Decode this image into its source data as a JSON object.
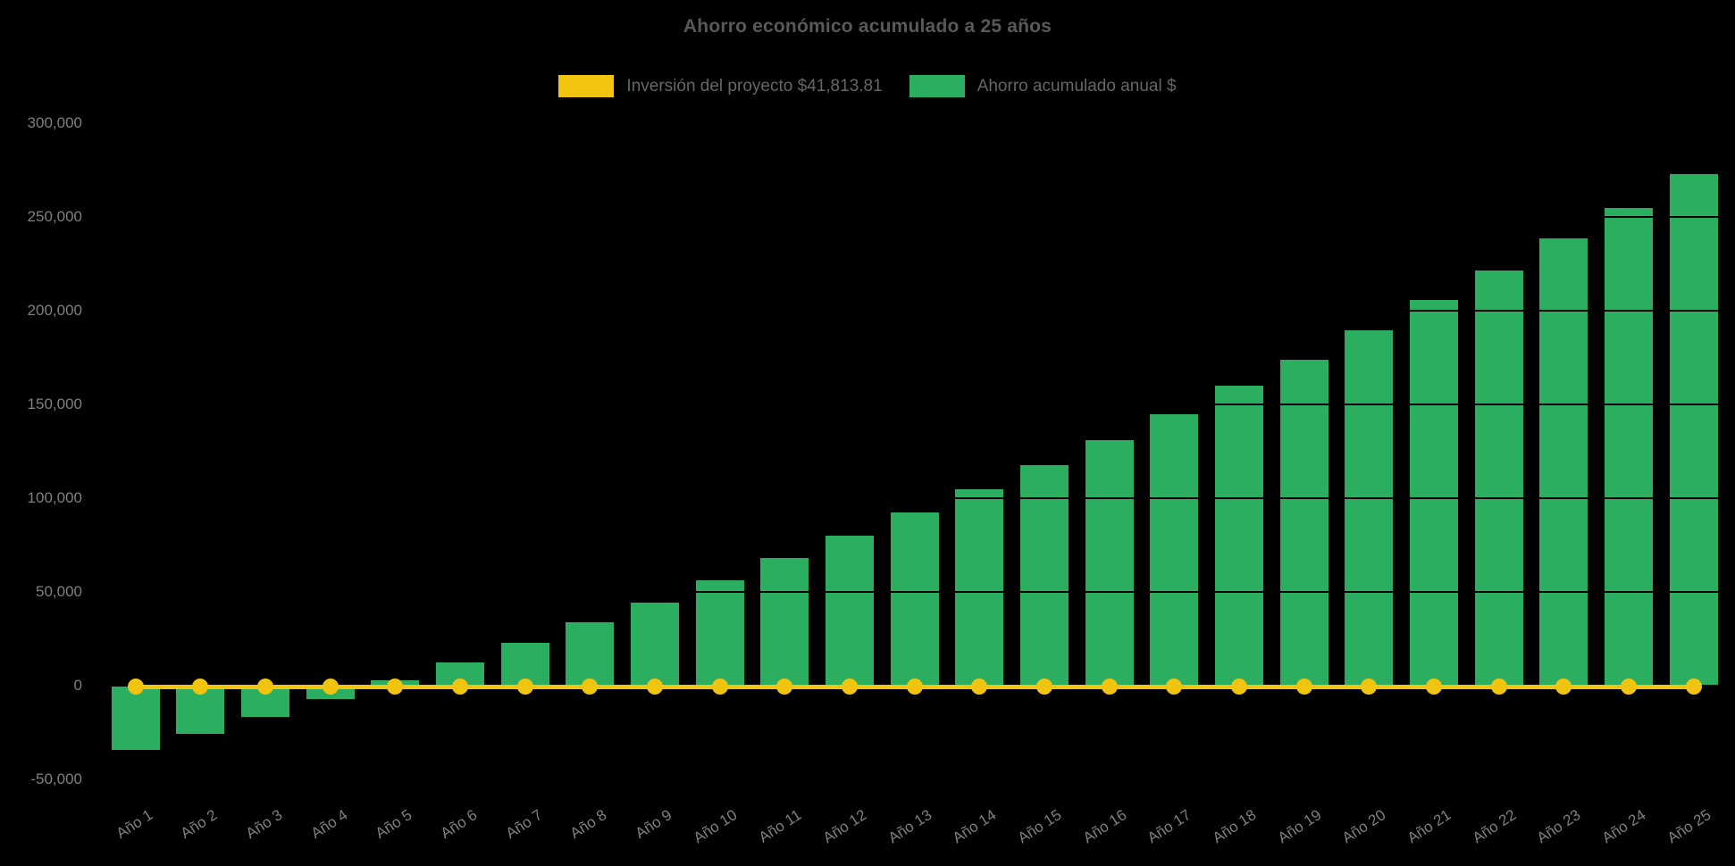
{
  "title": "Ahorro económico acumulado a 25 años",
  "legend": [
    {
      "label": "Inversión del proyecto $41,813.81",
      "color": "#F1C40F"
    },
    {
      "label": "Ahorro acumulado anual $",
      "color": "#2BAE60"
    }
  ],
  "colors": {
    "background": "#000000",
    "title_text": "#595959",
    "axis_text": "#7F7F7F",
    "legend_text": "#666666",
    "bar_green": "#2BAE60",
    "line_yellow": "#F1C40F"
  },
  "chart_data": {
    "type": "bar",
    "title": "Ahorro económico acumulado a 25 años",
    "xlabel": "",
    "ylabel": "",
    "categories": [
      "Año 1",
      "Año 2",
      "Año 3",
      "Año 4",
      "Año 5",
      "Año 6",
      "Año 7",
      "Año 8",
      "Año 9",
      "Año 10",
      "Año 11",
      "Año 12",
      "Año 13",
      "Año 14",
      "Año 15",
      "Año 16",
      "Año 17",
      "Año 18",
      "Año 19",
      "Año 20",
      "Año 21",
      "Año 22",
      "Año 23",
      "Año 24",
      "Año 25"
    ],
    "series": [
      {
        "name": "Inversión del proyecto $41,813.81",
        "type": "line",
        "color": "#F1C40F",
        "marker": "circle",
        "values": [
          0,
          0,
          0,
          0,
          0,
          0,
          0,
          0,
          0,
          0,
          0,
          0,
          0,
          0,
          0,
          0,
          0,
          0,
          0,
          0,
          0,
          0,
          0,
          0,
          0
        ]
      },
      {
        "name": "Ahorro acumulado anual $",
        "type": "bar",
        "color": "#2BAE60",
        "values": [
          -34500,
          -25500,
          -16500,
          -7000,
          3000,
          12500,
          23000,
          34000,
          44500,
          56000,
          68000,
          80000,
          92500,
          105000,
          117500,
          131000,
          145000,
          160000,
          174000,
          189500,
          205500,
          221500,
          238500,
          255000,
          273000
        ]
      }
    ],
    "ylim": [
      -50000,
      300000
    ],
    "y_ticks": [
      -50000,
      0,
      50000,
      100000,
      150000,
      200000,
      250000,
      300000
    ],
    "y_tick_labels": [
      "-50,000",
      "0",
      "50,000",
      "100,000",
      "150,000",
      "200,000",
      "250,000",
      "300,000"
    ],
    "grid": "off",
    "legend_position": "top-center",
    "x_tick_rotation": -33
  }
}
